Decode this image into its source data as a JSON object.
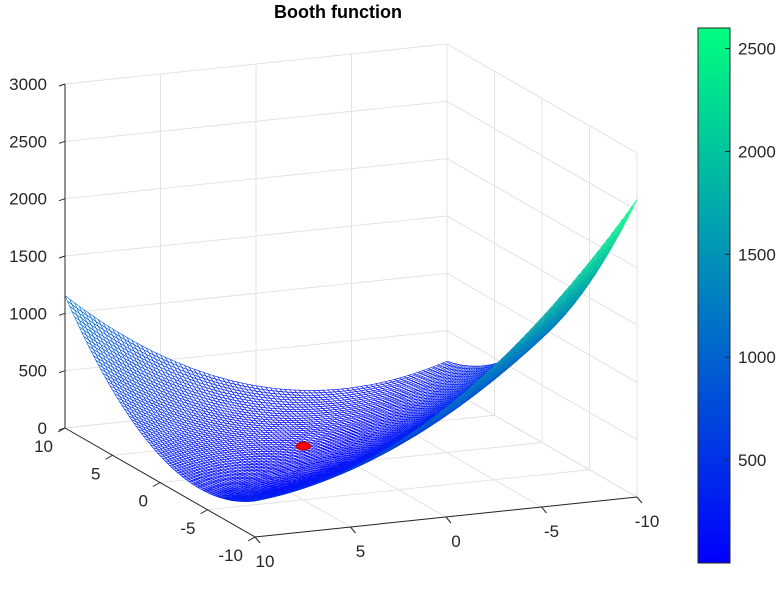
{
  "chart_data": {
    "type": "surface",
    "title": "Booth function",
    "xlabel": "",
    "ylabel": "",
    "zlabel": "",
    "function": "(x + 2*y - 7)^2 + (2*x + y - 5)^2",
    "x_range": [
      -10,
      10
    ],
    "y_range": [
      -10,
      10
    ],
    "zlim": [
      0,
      3000
    ],
    "z_ticks": [
      0,
      500,
      1000,
      1500,
      2000,
      2500,
      3000
    ],
    "x_ticks": [
      -10,
      -5,
      0,
      5,
      10
    ],
    "y_ticks": [
      -10,
      -5,
      0,
      5,
      10
    ],
    "grid": true,
    "minimum_marker": {
      "x": 1,
      "y": 3,
      "z": 0,
      "color": "#ff0000"
    },
    "colormap": [
      "#0000ff",
      "#00ff80"
    ],
    "colorbar": {
      "range": [
        0,
        2600
      ],
      "ticks": [
        500,
        1000,
        1500,
        2000,
        2500
      ]
    }
  }
}
